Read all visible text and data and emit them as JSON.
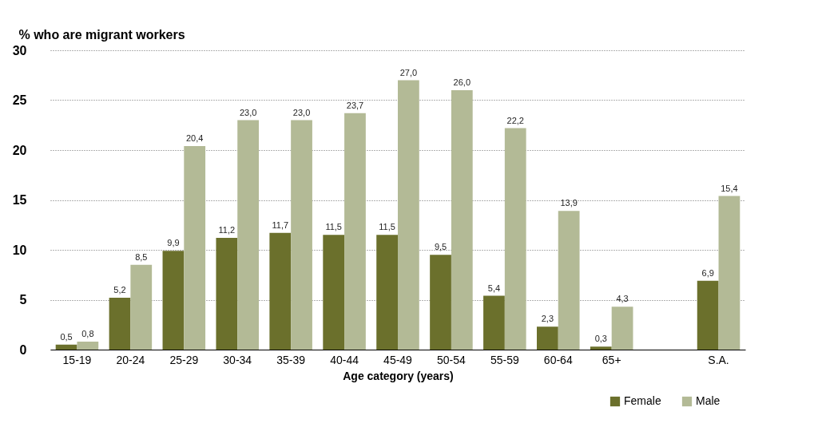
{
  "chart_data": {
    "type": "bar",
    "ylabel": "% who are migrant workers",
    "xlabel": "Age category (years)",
    "categories": [
      "15-19",
      "20-24",
      "25-29",
      "30-34",
      "35-39",
      "40-44",
      "45-49",
      "50-54",
      "55-59",
      "60-64",
      "65+",
      null,
      "S.A."
    ],
    "series": [
      {
        "name": "Female",
        "color": "#6b702c",
        "values": [
          0.5,
          5.2,
          9.9,
          11.2,
          11.7,
          11.5,
          11.5,
          9.5,
          5.4,
          2.3,
          0.3,
          null,
          6.9
        ],
        "value_labels": [
          "0,5",
          "5,2",
          "9,9",
          "11,2",
          "11,7",
          "11,5",
          "11,5",
          "9,5",
          "5,4",
          "2,3",
          "0,3",
          null,
          "6,9"
        ]
      },
      {
        "name": "Male",
        "color": "#b3ba96",
        "values": [
          0.8,
          8.5,
          20.4,
          23.0,
          23.0,
          23.7,
          27.0,
          26.0,
          22.2,
          13.9,
          4.3,
          null,
          15.4
        ],
        "value_labels": [
          "0,8",
          "8,5",
          "20,4",
          "23,0",
          "23,0",
          "23,7",
          "27,0",
          "26,0",
          "22,2",
          "13,9",
          "4,3",
          null,
          "15,4"
        ]
      }
    ],
    "ylim": [
      0,
      30
    ],
    "yticks": [
      0,
      5,
      10,
      15,
      20,
      25,
      30
    ],
    "grid": "y",
    "legend": "bottom right"
  }
}
